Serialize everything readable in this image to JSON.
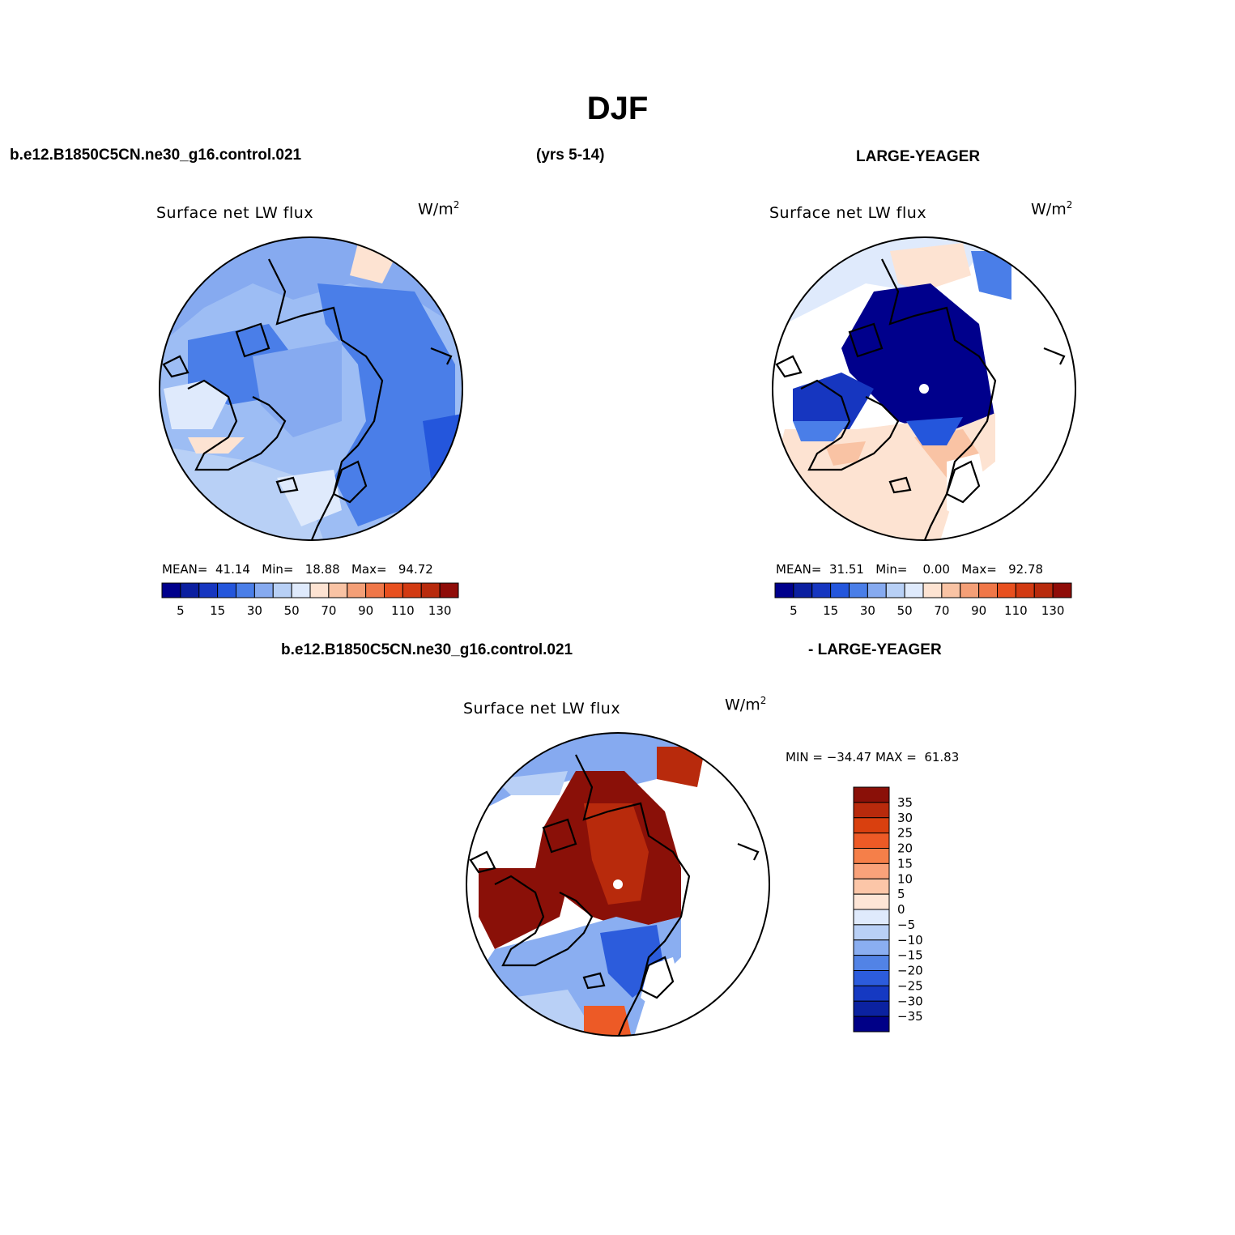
{
  "header": {
    "title": "DJF",
    "case": "b.e12.B1850C5CN.ne30_g16.control.021",
    "years": "(yrs 5-14)",
    "reference": "LARGE-YEAGER",
    "diff_case": "b.e12.B1850C5CN.ne30_g16.control.021",
    "diff_reference": "- LARGE-YEAGER"
  },
  "panels": [
    {
      "title": "Surface net LW flux",
      "unit": "W/m",
      "unit_exp": "2",
      "stats": "MEAN=  41.14   Min=   18.88   Max=   94.72"
    },
    {
      "title": "Surface net LW flux",
      "unit": "W/m",
      "unit_exp": "2",
      "stats": "MEAN=  31.51   Min=    0.00   Max=   92.78"
    },
    {
      "title": "Surface net LW flux",
      "unit": "W/m",
      "unit_exp": "2",
      "stats": "MIN = −34.47 MAX =  61.83"
    }
  ],
  "colorbar_main": {
    "labels": [
      "5",
      "15",
      "30",
      "50",
      "70",
      "90",
      "110",
      "130"
    ],
    "colors": [
      "#00008c",
      "#0b1fa0",
      "#1636c0",
      "#2456dc",
      "#4a7ee8",
      "#86aaf0",
      "#b8d0f6",
      "#dfeafc",
      "#fde3d2",
      "#f9c3a4",
      "#f49f77",
      "#f07748",
      "#e8501f",
      "#d23a12",
      "#b82a0c",
      "#8f0c08"
    ]
  },
  "colorbar_diff": {
    "labels": [
      "35",
      "30",
      "25",
      "20",
      "15",
      "10",
      "5",
      "0",
      "−5",
      "−10",
      "−15",
      "−20",
      "−25",
      "−30",
      "−35"
    ],
    "colors": [
      "#8a1008",
      "#b82a0c",
      "#d9400f",
      "#ed5a26",
      "#f57f49",
      "#f9a27a",
      "#fcc6a8",
      "#fde5d6",
      "#dfeafc",
      "#b9d0f6",
      "#8aaef1",
      "#5283e6",
      "#2c5cdc",
      "#1539c2",
      "#0b22a0",
      "#000087"
    ]
  },
  "icons": {
    "map_marker": "north-pole-dot",
    "map_style": "polar-stereographic-arctic"
  }
}
